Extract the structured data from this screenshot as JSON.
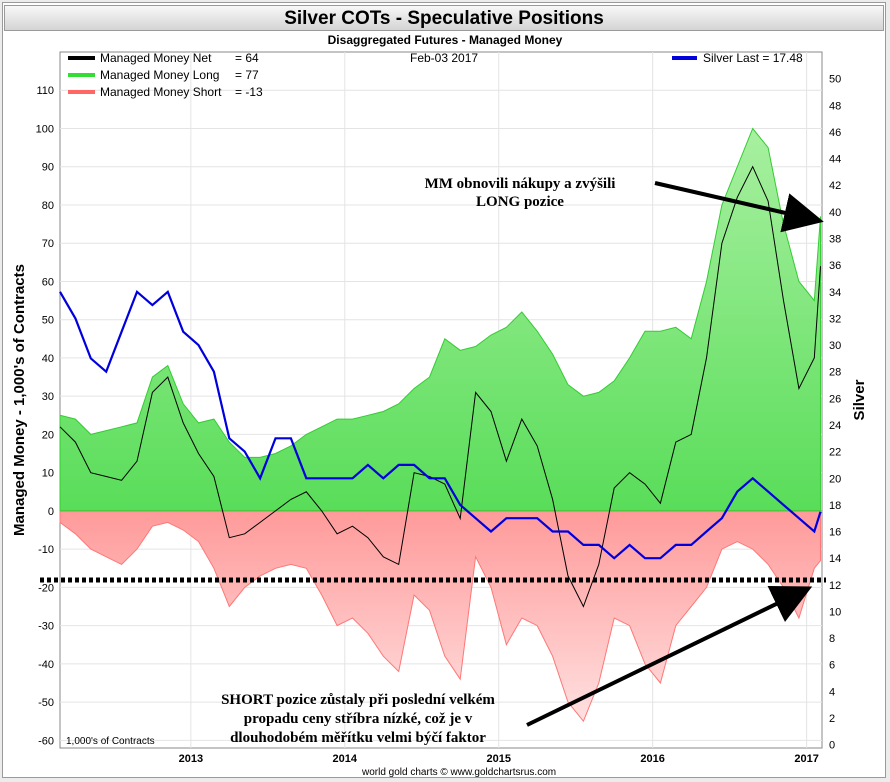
{
  "header": {
    "title": "Silver COTs - Speculative Positions",
    "subtitle": "Disaggregated Futures - Managed Money",
    "date": "Feb-03  2017"
  },
  "legend": [
    {
      "label": "Managed Money Net",
      "value": "= 64",
      "color": "#000000"
    },
    {
      "label": "Managed Money Long",
      "value": "= 77",
      "color": "#33dd33"
    },
    {
      "label": "Managed Money Short",
      "value": "= -13",
      "color": "#ff6666"
    }
  ],
  "silver_legend": {
    "label": "Silver Last = 17.48",
    "color": "#0000dd"
  },
  "footer": {
    "units_note": "1,000's of Contracts",
    "credit": "world gold charts © www.goldchartsrus.com"
  },
  "annotations": {
    "top_lines": [
      "MM obnovili nákupy a zvýšili",
      "LONG pozice"
    ],
    "bottom_lines": [
      "SHORT pozice zůstaly při poslední velkém",
      "propadu ceny stříbra nízké, což je v",
      "dlouhodobém měřítku velmi býčí faktor"
    ]
  },
  "chart_data": {
    "type": "area",
    "title": "Silver COTs - Speculative Positions",
    "subtitle": "Disaggregated Futures - Managed Money",
    "ylabel": "Managed Money - 1,000's of Contracts",
    "y2label": "Silver",
    "ylim": [
      -62,
      120
    ],
    "y2lim": [
      -0.25,
      52
    ],
    "xlim": [
      2012.15,
      2017.1
    ],
    "yticks": [
      "110",
      "100",
      "90",
      "80",
      "70",
      "60",
      "50",
      "40",
      "30",
      "20",
      "10",
      "0",
      "-10",
      "-20",
      "-30",
      "-40",
      "-50",
      "-60"
    ],
    "y2ticks": [
      "50",
      "48",
      "46",
      "44",
      "42",
      "40",
      "38",
      "36",
      "34",
      "32",
      "30",
      "28",
      "26",
      "24",
      "22",
      "20",
      "18",
      "16",
      "14",
      "12",
      "10",
      "8",
      "6",
      "4",
      "2",
      "0"
    ],
    "xticks": [
      "2013",
      "2014",
      "2015",
      "2016",
      "2017"
    ],
    "x": [
      2012.15,
      2012.25,
      2012.35,
      2012.45,
      2012.55,
      2012.65,
      2012.75,
      2012.85,
      2012.95,
      2013.05,
      2013.15,
      2013.25,
      2013.35,
      2013.45,
      2013.55,
      2013.65,
      2013.75,
      2013.85,
      2013.95,
      2014.05,
      2014.15,
      2014.25,
      2014.35,
      2014.45,
      2014.55,
      2014.65,
      2014.75,
      2014.85,
      2014.95,
      2015.05,
      2015.15,
      2015.25,
      2015.35,
      2015.45,
      2015.55,
      2015.65,
      2015.75,
      2015.85,
      2015.95,
      2016.05,
      2016.15,
      2016.25,
      2016.35,
      2016.45,
      2016.55,
      2016.65,
      2016.75,
      2016.85,
      2016.95,
      2017.05,
      2017.09
    ],
    "series": [
      {
        "name": "Managed Money Long",
        "values": [
          25,
          24,
          20,
          21,
          22,
          23,
          35,
          38,
          28,
          23,
          24,
          18,
          14,
          14,
          15,
          17,
          20,
          22,
          24,
          24,
          25,
          26,
          28,
          32,
          35,
          45,
          42,
          43,
          46,
          48,
          52,
          47,
          41,
          33,
          30,
          31,
          34,
          40,
          47,
          47,
          48,
          45,
          60,
          80,
          90,
          100,
          95,
          75,
          60,
          55,
          77
        ]
      },
      {
        "name": "Managed Money Short",
        "values": [
          -3,
          -6,
          -10,
          -12,
          -14,
          -10,
          -4,
          -3,
          -5,
          -8,
          -15,
          -25,
          -20,
          -17,
          -15,
          -14,
          -15,
          -22,
          -30,
          -28,
          -32,
          -38,
          -42,
          -22,
          -26,
          -38,
          -44,
          -12,
          -20,
          -35,
          -28,
          -30,
          -38,
          -50,
          -55,
          -45,
          -28,
          -30,
          -40,
          -45,
          -30,
          -25,
          -20,
          -10,
          -8,
          -10,
          -14,
          -20,
          -28,
          -15,
          -13
        ]
      },
      {
        "name": "Managed Money Net",
        "values": [
          22,
          18,
          10,
          9,
          8,
          13,
          31,
          35,
          23,
          15,
          9,
          -7,
          -6,
          -3,
          0,
          3,
          5,
          0,
          -6,
          -4,
          -7,
          -12,
          -14,
          10,
          9,
          7,
          -2,
          31,
          26,
          13,
          24,
          17,
          3,
          -17,
          -25,
          -14,
          6,
          10,
          7,
          2,
          18,
          20,
          40,
          70,
          82,
          90,
          81,
          55,
          32,
          40,
          64
        ]
      },
      {
        "name": "Silver Last",
        "values": [
          34,
          32,
          29,
          28,
          31,
          34,
          33,
          34,
          31,
          30,
          28,
          23,
          22,
          20,
          23,
          23,
          20,
          20,
          20,
          20,
          21,
          20,
          21,
          21,
          20,
          20,
          18,
          17,
          16,
          17,
          17,
          17,
          16,
          16,
          15,
          15,
          14,
          15,
          14,
          14,
          15,
          15,
          16,
          17,
          19,
          20,
          19,
          18,
          17,
          16,
          17.48
        ]
      }
    ]
  }
}
